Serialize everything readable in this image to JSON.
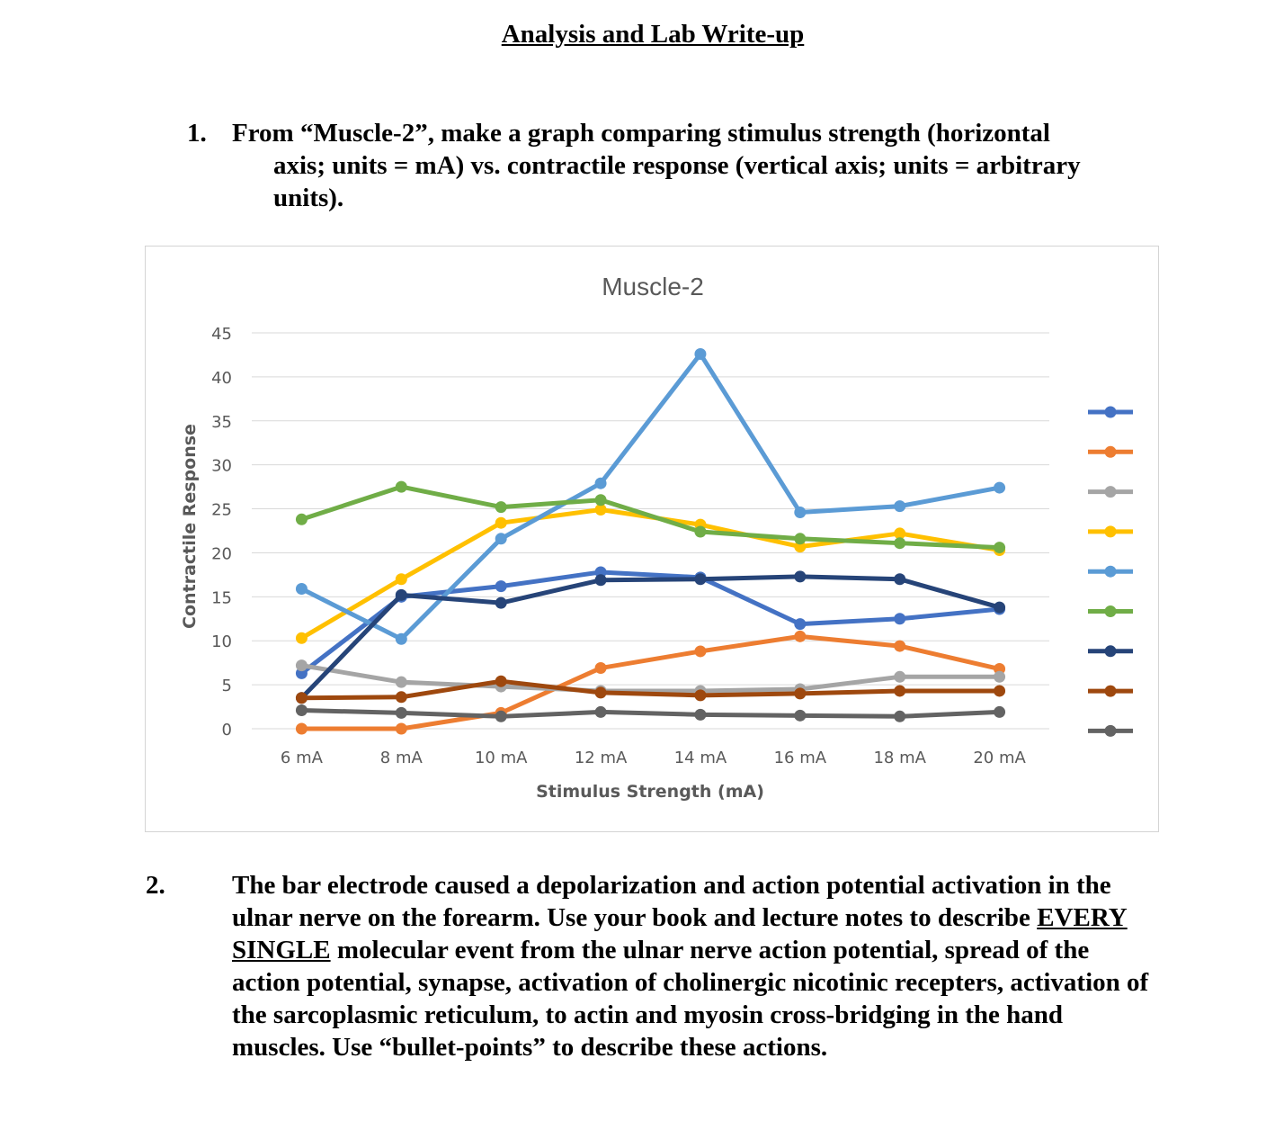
{
  "document": {
    "title": "Analysis and Lab Write-up",
    "q1": {
      "number": "1.",
      "line1": "From “Muscle-2”, make a graph comparing stimulus strength (horizontal",
      "line2": "axis; units = mA) vs. contractile response (vertical axis; units = arbitrary",
      "line3": "units)."
    },
    "q2": {
      "number": "2.",
      "text_before": "The bar electrode caused a depolarization and action potential activation in the ulnar nerve on the forearm.  Use your book and lecture notes to describe ",
      "emphasis": "EVERY SINGLE",
      "text_after": " molecular event from the ulnar nerve action potential, spread of the action potential, synapse, activation of cholinergic nicotinic recepters, activation of the sarcoplasmic reticulum, to actin and myosin cross-bridging in the hand muscles. Use “bullet-points” to describe these actions."
    }
  },
  "chart_data": {
    "type": "line",
    "title": "Muscle-2",
    "xlabel": "Stimulus Strength (mA)",
    "ylabel": "Contractile Response",
    "categories": [
      "6 mA",
      "8 mA",
      "10 mA",
      "12 mA",
      "14 mA",
      "16 mA",
      "18 mA",
      "20 mA"
    ],
    "ylim": [
      0,
      45
    ],
    "yticks": [
      "0",
      "5",
      "10",
      "15",
      "20",
      "25",
      "30",
      "35",
      "40",
      "45"
    ],
    "grid": true,
    "legend_position": "right",
    "legend_labels_visible": false,
    "series": [
      {
        "color": "#4472c4",
        "values": [
          6.3,
          15.0,
          16.2,
          17.8,
          17.2,
          11.9,
          12.5,
          13.6
        ]
      },
      {
        "color": "#ed7d31",
        "values": [
          0.0,
          0.0,
          1.8,
          6.9,
          8.8,
          10.5,
          9.4,
          6.8
        ]
      },
      {
        "color": "#a5a5a5",
        "values": [
          7.2,
          5.3,
          4.8,
          4.3,
          4.3,
          4.5,
          5.9,
          5.9
        ]
      },
      {
        "color": "#ffc000",
        "values": [
          10.3,
          17.0,
          23.4,
          24.9,
          23.2,
          20.7,
          22.2,
          20.3
        ]
      },
      {
        "color": "#5b9bd5",
        "values": [
          15.9,
          10.2,
          21.6,
          27.9,
          42.6,
          24.6,
          25.3,
          27.4
        ]
      },
      {
        "color": "#70ad47",
        "values": [
          23.8,
          27.5,
          25.2,
          26.0,
          22.4,
          21.6,
          21.1,
          20.6
        ]
      },
      {
        "color": "#264478",
        "values": [
          3.5,
          15.2,
          14.3,
          16.9,
          17.0,
          17.3,
          17.0,
          13.8
        ]
      },
      {
        "color": "#9e480e",
        "values": [
          3.5,
          3.6,
          5.4,
          4.1,
          3.8,
          4.0,
          4.3,
          4.3
        ]
      },
      {
        "color": "#636363",
        "values": [
          2.1,
          1.8,
          1.4,
          1.9,
          1.6,
          1.5,
          1.4,
          1.9
        ]
      }
    ]
  }
}
